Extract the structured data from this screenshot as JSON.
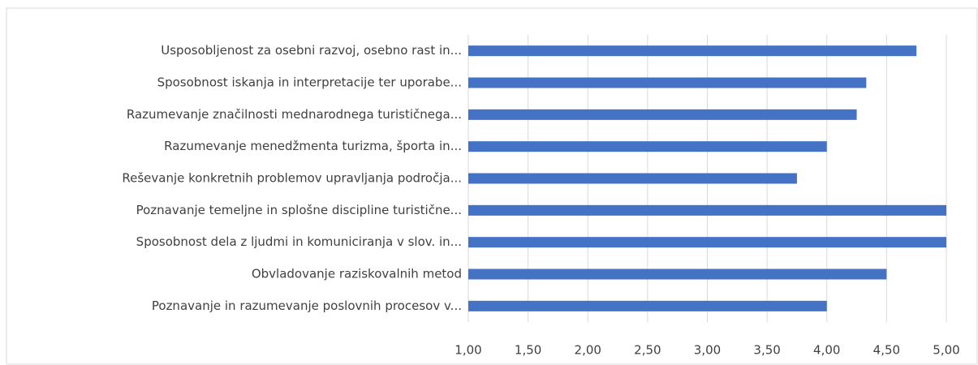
{
  "chart_data": {
    "type": "bar",
    "orientation": "horizontal",
    "categories": [
      "Usposobljenost za osebni razvoj, osebno rast in...",
      "Sposobnost iskanja in interpretacije ter uporabe...",
      "Razumevanje značilnosti mednarodnega turističnega...",
      "Razumevanje menedžmenta turizma, športa in...",
      "Reševanje konkretnih problemov upravljanja področja...",
      "Poznavanje temeljne in splošne discipline turistične...",
      "Sposobnost dela z ljudmi in komuniciranja v slov. in...",
      "Obvladovanje raziskovalnih metod",
      "Poznavanje in razumevanje poslovnih procesov v..."
    ],
    "values": [
      4.75,
      4.33,
      4.25,
      4.0,
      3.75,
      5.0,
      5.0,
      4.5,
      4.0
    ],
    "color": "#4472c4",
    "xlim": [
      1,
      5
    ],
    "xticks": [
      {
        "value": 1,
        "label": "1,00"
      },
      {
        "value": 1.5,
        "label": "1,50"
      },
      {
        "value": 2,
        "label": "2,00"
      },
      {
        "value": 2.5,
        "label": "2,50"
      },
      {
        "value": 3,
        "label": "3,00"
      },
      {
        "value": 3.5,
        "label": "3,50"
      },
      {
        "value": 4,
        "label": "4,00"
      },
      {
        "value": 4.5,
        "label": "4,50"
      },
      {
        "value": 5,
        "label": "5,00"
      }
    ],
    "grid": true
  }
}
